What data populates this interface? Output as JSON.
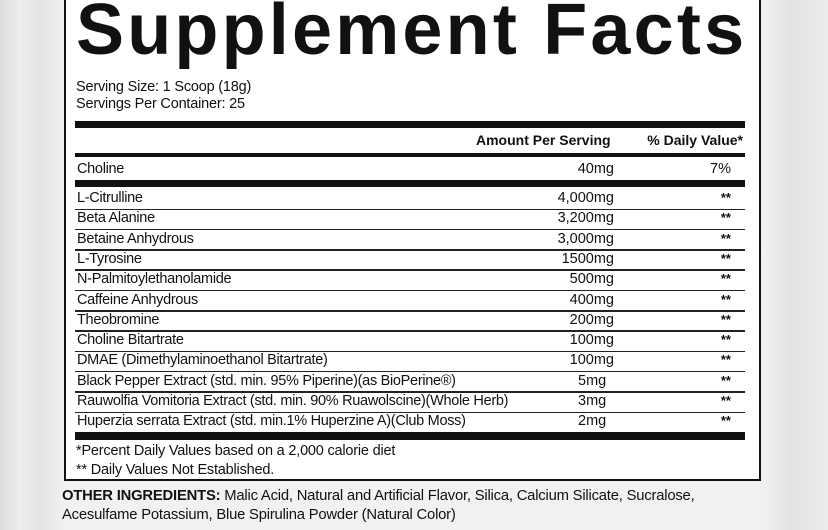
{
  "title": "Supplement Facts",
  "serving_size": "Serving Size: 1 Scoop (18g)",
  "servings_per_container": "Servings Per Container: 25",
  "header": {
    "amount": "Amount Per Serving",
    "dv": "% Daily Value*"
  },
  "primary": {
    "name": "Choline",
    "amount": "40mg",
    "dv": "7%"
  },
  "rows": [
    {
      "name": "L-Citrulline",
      "amount": "4,000mg",
      "dv": "**"
    },
    {
      "name": "Beta Alanine",
      "amount": "3,200mg",
      "dv": "**"
    },
    {
      "name": "Betaine Anhydrous",
      "amount": "3,000mg",
      "dv": "**"
    },
    {
      "name": "L-Tyrosine",
      "amount": "1500mg",
      "dv": "**"
    },
    {
      "name": "N-Palmitoylethanolamide",
      "amount": "500mg",
      "dv": "**"
    },
    {
      "name": "Caffeine Anhydrous",
      "amount": "400mg",
      "dv": "**"
    },
    {
      "name": "Theobromine",
      "amount": "200mg",
      "dv": "**"
    },
    {
      "name": "Choline Bitartrate",
      "amount": "100mg",
      "dv": "**"
    },
    {
      "name": "DMAE (Dimethylaminoethanol Bitartrate)",
      "amount": "100mg",
      "dv": "**"
    },
    {
      "name": "Black Pepper Extract (std. min. 95% Piperine)(as BioPerine®)",
      "amount": "5mg",
      "dv": "**"
    },
    {
      "name": "Rauwolfia Vomitoria Extract (std. min. 90% Ruawolscine)(Whole Herb)",
      "amount": "3mg",
      "dv": "**"
    },
    {
      "name": "Huperzia serrata Extract (std. min.1% Huperzine A)(Club Moss)",
      "amount": "2mg",
      "dv": "**"
    }
  ],
  "footnotes": [
    "*Percent Daily Values based on a 2,000 calorie diet",
    "** Daily Values Not Established."
  ],
  "other_ingredients": {
    "label": "OTHER INGREDIENTS:",
    "line1": " Malic Acid, Natural and Artificial Flavor, Silica, Calcium Silicate, Sucralose,",
    "line2": "Acesulfame Potassium, Blue Spirulina Powder (Natural Color)"
  }
}
